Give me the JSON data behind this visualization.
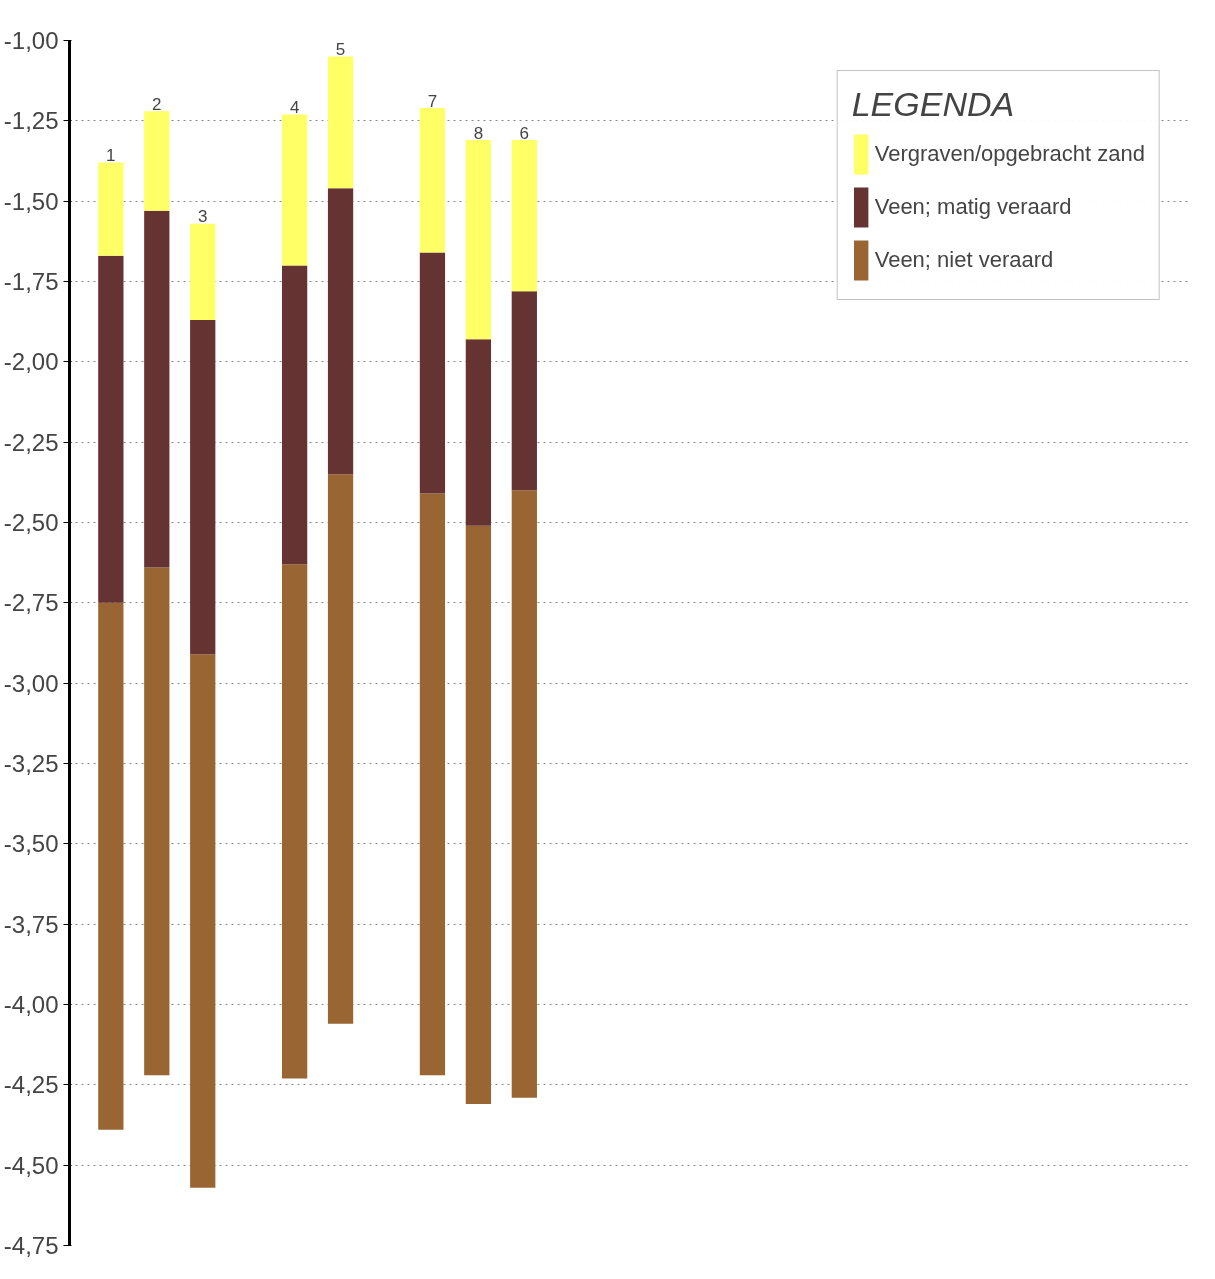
{
  "chart_data": {
    "type": "bar",
    "legend_title": "LEGENDA",
    "legend": "top right",
    "grid": "y",
    "line_style": "dotted",
    "tick_labels": "y",
    "categories": [
      "1",
      "2",
      "3",
      null,
      "4",
      "5",
      null,
      "7",
      "8",
      "6"
    ],
    "series": [
      {
        "name": "Veen; niet veraard",
        "color": "#996633",
        "base": [
          -4.39,
          -4.22,
          -4.57,
          null,
          -4.23,
          -4.06,
          null,
          -4.22,
          -4.31,
          -4.29
        ],
        "values": [
          1.64,
          1.58,
          1.66,
          null,
          1.6,
          1.71,
          null,
          1.81,
          1.8,
          1.89
        ]
      },
      {
        "name": "Veen; matig veraard",
        "color": "#663333",
        "base": [
          -2.75,
          -2.64,
          -2.91,
          null,
          -2.63,
          -2.35,
          null,
          -2.41,
          -2.51,
          -2.4
        ],
        "values": [
          1.08,
          1.11,
          1.04,
          null,
          0.93,
          0.89,
          null,
          0.75,
          0.58,
          0.62
        ]
      },
      {
        "name": "Vergraven/opgebracht zand",
        "color": "#ffff66",
        "base": [
          -1.67,
          -1.53,
          -1.87,
          null,
          -1.7,
          -1.46,
          null,
          -1.66,
          -1.93,
          -1.78
        ],
        "values": [
          0.29,
          0.31,
          0.3,
          null,
          0.47,
          0.41,
          null,
          0.45,
          0.62,
          0.47
        ]
      }
    ],
    "ylim": [
      -4.75,
      -1.0
    ],
    "yticks": [
      {
        "value": -1.0,
        "label": "-1,00"
      },
      {
        "value": -1.25,
        "label": "-1,25"
      },
      {
        "value": -1.5,
        "label": "-1,50"
      },
      {
        "value": -1.75,
        "label": "-1,75"
      },
      {
        "value": -2.0,
        "label": "-2,00"
      },
      {
        "value": -2.25,
        "label": "-2,25"
      },
      {
        "value": -2.5,
        "label": "-2,50"
      },
      {
        "value": -2.75,
        "label": "-2,75"
      },
      {
        "value": -3.0,
        "label": "-3,00"
      },
      {
        "value": -3.25,
        "label": "-3,25"
      },
      {
        "value": -3.5,
        "label": "-3,50"
      },
      {
        "value": -3.75,
        "label": "-3,75"
      },
      {
        "value": -4.0,
        "label": "-4,00"
      },
      {
        "value": -4.25,
        "label": "-4,25"
      },
      {
        "value": -4.5,
        "label": "-4,50"
      },
      {
        "value": -4.75,
        "label": "-4,75"
      }
    ]
  }
}
